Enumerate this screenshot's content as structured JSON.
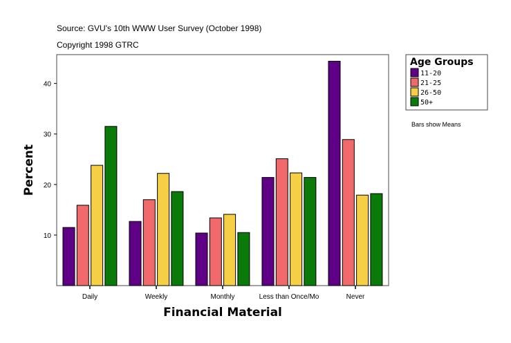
{
  "chart_data": {
    "type": "bar",
    "title": "Source: GVU's 10th WWW User Survey (October 1998)",
    "subtitle": "Copyright 1998 GTRC",
    "xlabel": "Financial Material",
    "ylabel": "Percent",
    "ylim": [
      0,
      45.7
    ],
    "yticks": [
      10,
      20,
      30,
      40
    ],
    "grid": false,
    "legend_title": "Age Groups",
    "legend_position": "right",
    "note": "Bars show Means",
    "categories": [
      "Daily",
      "Weekly",
      "Monthly",
      "Less than Once/Mo",
      "Never"
    ],
    "series": [
      {
        "name": "11-20",
        "color": "#5f0087",
        "values": [
          11.5,
          12.7,
          10.4,
          21.4,
          44.4
        ]
      },
      {
        "name": "21-25",
        "color": "#f06a6c",
        "values": [
          15.9,
          17.0,
          13.4,
          25.1,
          28.9
        ]
      },
      {
        "name": "26-50",
        "color": "#f5cf45",
        "values": [
          23.8,
          22.2,
          14.1,
          22.3,
          17.9
        ]
      },
      {
        "name": "50+",
        "color": "#0a7a0a",
        "values": [
          31.5,
          18.6,
          10.5,
          21.4,
          18.2
        ]
      }
    ]
  }
}
